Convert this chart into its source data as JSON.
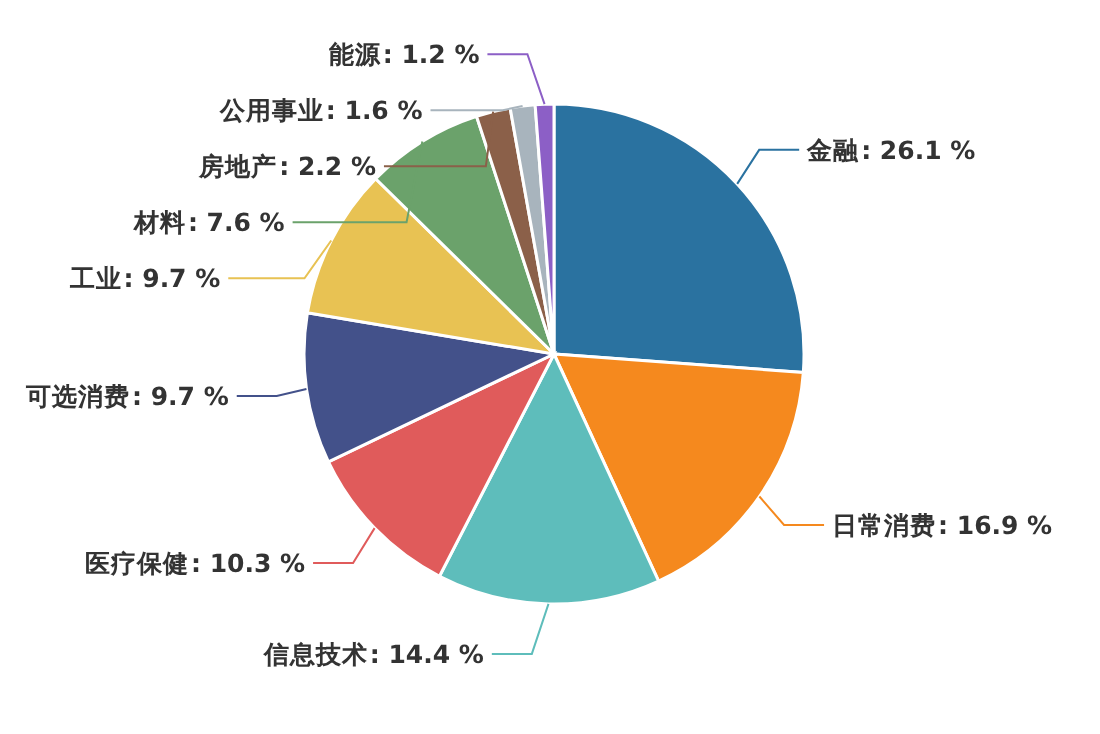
{
  "chart_data": {
    "type": "pie",
    "categories": [
      "金融",
      "日常消费",
      "信息技术",
      "医疗保健",
      "可选消费",
      "工业",
      "材料",
      "房地产",
      "公用事业",
      "能源"
    ],
    "values": [
      26.1,
      16.9,
      14.4,
      10.3,
      9.7,
      9.7,
      7.6,
      2.2,
      1.6,
      1.2
    ],
    "colors": [
      "#2a72a0",
      "#f5891e",
      "#5ebdbb",
      "#e05b5b",
      "#43518a",
      "#e8c253",
      "#6ba26b",
      "#8b6049",
      "#a8b4bd",
      "#8c5fc6"
    ],
    "value_labels": [
      ": 26.1 %",
      ": 16.9 %",
      ": 14.4 %",
      ": 10.3 %",
      ": 9.7 %",
      ": 9.7 %",
      ": 7.6 %",
      ": 2.2 %",
      ": 1.6 %",
      ": 1.2 %"
    ]
  }
}
